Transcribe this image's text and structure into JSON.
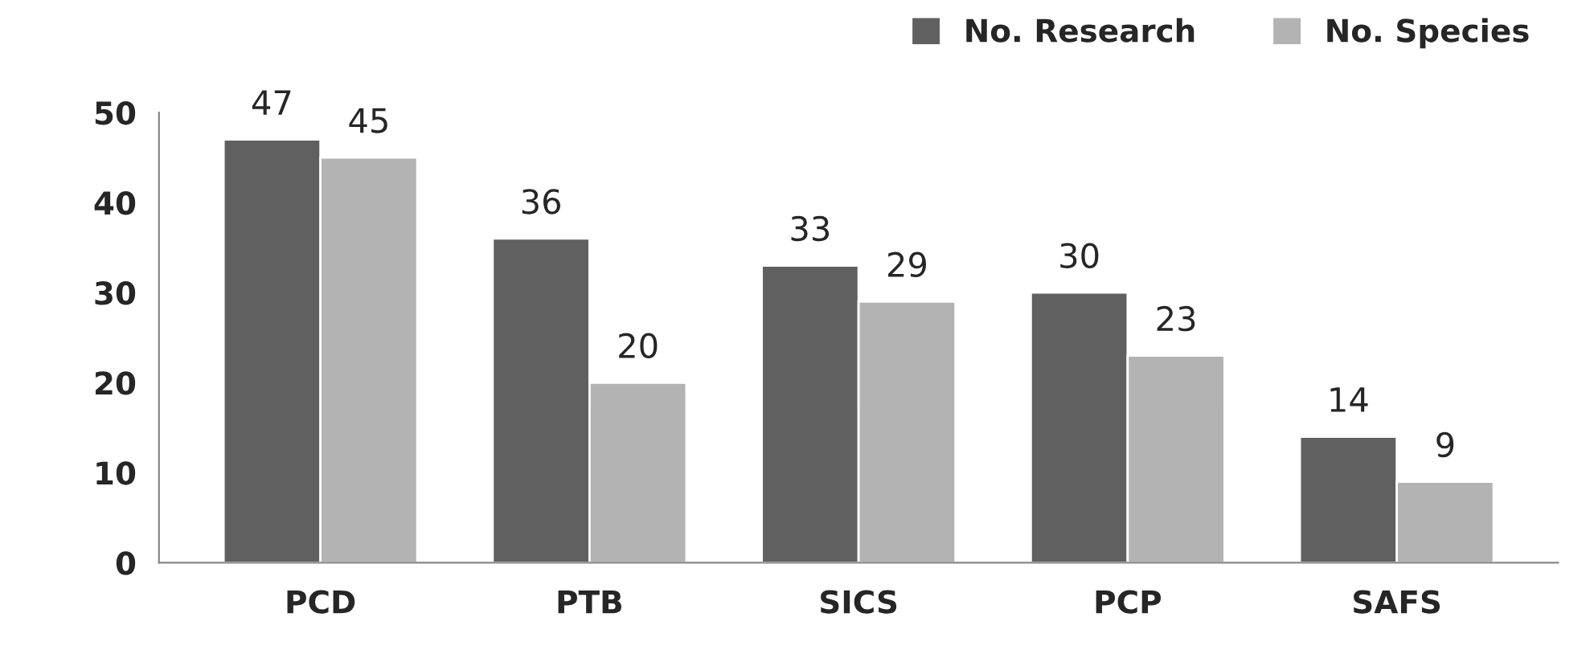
{
  "chart_data": {
    "type": "bar",
    "categories": [
      "PCD",
      "PTB",
      "SICS",
      "PCP",
      "SAFS"
    ],
    "series": [
      {
        "name": "No. Research",
        "color": "#606060",
        "values": [
          47,
          36,
          33,
          30,
          14
        ]
      },
      {
        "name": "No. Species",
        "color": "#b3b3b3",
        "values": [
          45,
          20,
          29,
          23,
          9
        ]
      }
    ],
    "ylim": [
      0,
      50
    ],
    "yticks": [
      0,
      10,
      20,
      30,
      40,
      50
    ],
    "grid": false,
    "legend": "top right",
    "data_labels": true
  }
}
